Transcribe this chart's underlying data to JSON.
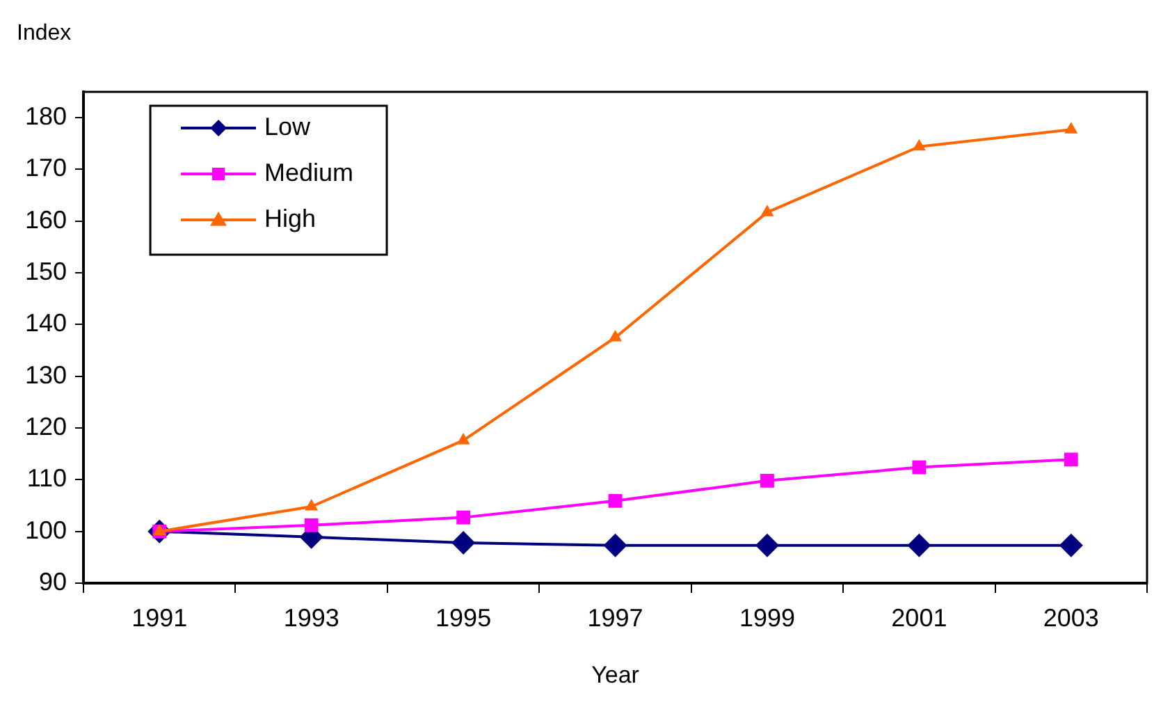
{
  "chart_data": {
    "type": "line",
    "xlabel": "Year",
    "ylabel": "Index",
    "categories": [
      "1991",
      "1993",
      "1995",
      "1997",
      "1999",
      "2001",
      "2003"
    ],
    "series": [
      {
        "name": "Low",
        "color": "#000080",
        "marker": "diamond",
        "values": [
          100,
          98.9,
          97.8,
          97.3,
          97.3,
          97.3,
          97.3
        ]
      },
      {
        "name": "Medium",
        "color": "#ff00ff",
        "marker": "square",
        "values": [
          100,
          101.2,
          102.7,
          105.9,
          109.8,
          112.4,
          113.9
        ]
      },
      {
        "name": "High",
        "color": "#ff6600",
        "marker": "triangle",
        "values": [
          100,
          104.8,
          117.6,
          137.5,
          161.7,
          174.4,
          177.7
        ]
      }
    ],
    "ylim": [
      90,
      185
    ],
    "yticks": [
      90,
      100,
      110,
      120,
      130,
      140,
      150,
      160,
      170,
      180
    ],
    "grid": false,
    "legend": "top left",
    "line_style": "solid"
  }
}
